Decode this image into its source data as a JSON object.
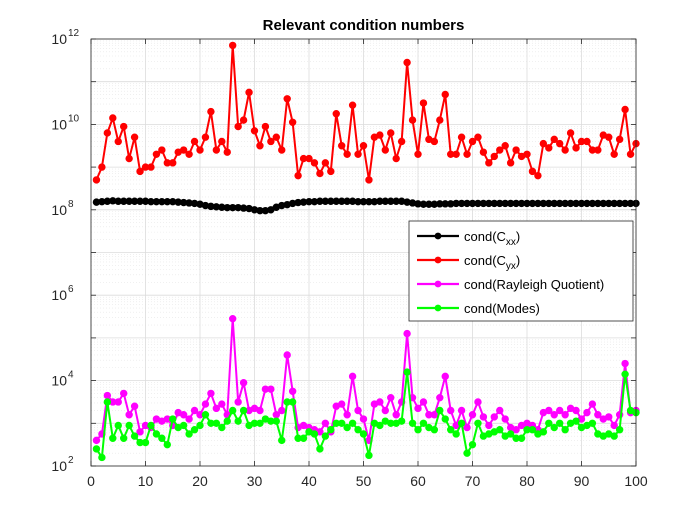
{
  "chart_data": {
    "type": "line",
    "title": "Relevant condition numbers",
    "xlabel": "",
    "ylabel": "",
    "xlim": [
      0,
      100
    ],
    "ylim_log10": [
      2,
      12
    ],
    "yscale": "log",
    "grid": true,
    "minor_grid": true,
    "legend_position": "right-center",
    "x_ticks": [
      "0",
      "10",
      "20",
      "30",
      "40",
      "50",
      "60",
      "70",
      "80",
      "90",
      "100"
    ],
    "y_ticks": [
      {
        "base": "10",
        "exp": "2"
      },
      {
        "base": "10",
        "exp": "4"
      },
      {
        "base": "10",
        "exp": "6"
      },
      {
        "base": "10",
        "exp": "8"
      },
      {
        "base": "10",
        "exp": "10"
      },
      {
        "base": "10",
        "exp": "12"
      }
    ],
    "x": [
      1,
      2,
      3,
      4,
      5,
      6,
      7,
      8,
      9,
      10,
      11,
      12,
      13,
      14,
      15,
      16,
      17,
      18,
      19,
      20,
      21,
      22,
      23,
      24,
      25,
      26,
      27,
      28,
      29,
      30,
      31,
      32,
      33,
      34,
      35,
      36,
      37,
      38,
      39,
      40,
      41,
      42,
      43,
      44,
      45,
      46,
      47,
      48,
      49,
      50,
      51,
      52,
      53,
      54,
      55,
      56,
      57,
      58,
      59,
      60,
      61,
      62,
      63,
      64,
      65,
      66,
      67,
      68,
      69,
      70,
      71,
      72,
      73,
      74,
      75,
      76,
      77,
      78,
      79,
      80,
      81,
      82,
      83,
      84,
      85,
      86,
      87,
      88,
      89,
      90,
      91,
      92,
      93,
      94,
      95,
      96,
      97,
      98,
      99,
      100
    ],
    "series": [
      {
        "name": "cond(C_xx)",
        "legend": {
          "main": "cond(C",
          "sub": "xx",
          "end": ")"
        },
        "color": "#000000",
        "log10_values": [
          8.18,
          8.19,
          8.2,
          8.21,
          8.2,
          8.2,
          8.2,
          8.2,
          8.2,
          8.2,
          8.19,
          8.19,
          8.19,
          8.19,
          8.19,
          8.18,
          8.17,
          8.16,
          8.15,
          8.13,
          8.1,
          8.08,
          8.07,
          8.06,
          8.05,
          8.05,
          8.05,
          8.04,
          8.03,
          8.0,
          7.98,
          7.98,
          8.0,
          8.06,
          8.1,
          8.12,
          8.15,
          8.17,
          8.18,
          8.19,
          8.19,
          8.2,
          8.2,
          8.2,
          8.2,
          8.2,
          8.2,
          8.2,
          8.19,
          8.19,
          8.19,
          8.19,
          8.2,
          8.2,
          8.2,
          8.2,
          8.2,
          8.18,
          8.16,
          8.14,
          8.13,
          8.13,
          8.13,
          8.14,
          8.14,
          8.14,
          8.15,
          8.15,
          8.15,
          8.15,
          8.15,
          8.15,
          8.15,
          8.15,
          8.15,
          8.15,
          8.15,
          8.15,
          8.15,
          8.15,
          8.15,
          8.15,
          8.15,
          8.15,
          8.15,
          8.15,
          8.15,
          8.15,
          8.15,
          8.15,
          8.15,
          8.15,
          8.15,
          8.15,
          8.15,
          8.15,
          8.15,
          8.15,
          8.15,
          8.15
        ]
      },
      {
        "name": "cond(C_yx)",
        "legend": {
          "main": "cond(C",
          "sub": "yx",
          "end": ")"
        },
        "color": "#ff0000",
        "log10_values": [
          8.7,
          9.0,
          9.8,
          10.15,
          9.6,
          9.95,
          9.2,
          9.7,
          8.9,
          9.0,
          9.0,
          9.3,
          9.4,
          9.1,
          9.1,
          9.35,
          9.4,
          9.3,
          9.6,
          9.4,
          9.7,
          10.3,
          9.4,
          9.6,
          9.35,
          11.85,
          9.95,
          10.1,
          10.75,
          9.85,
          9.5,
          9.95,
          9.6,
          9.7,
          9.4,
          10.6,
          10.05,
          8.8,
          9.2,
          9.2,
          9.1,
          8.85,
          9.1,
          8.9,
          10.25,
          9.5,
          9.3,
          10.45,
          9.3,
          9.5,
          8.7,
          9.7,
          9.75,
          9.4,
          9.8,
          9.2,
          9.6,
          11.45,
          10.1,
          9.3,
          10.5,
          9.65,
          9.6,
          10.1,
          10.7,
          9.3,
          9.3,
          9.7,
          9.3,
          9.6,
          9.7,
          9.35,
          9.1,
          9.25,
          9.4,
          9.5,
          9.1,
          9.4,
          9.25,
          9.3,
          8.9,
          8.8,
          9.55,
          9.45,
          9.65,
          9.55,
          9.4,
          9.8,
          9.45,
          9.6,
          9.6,
          9.4,
          9.4,
          9.75,
          9.7,
          9.3,
          9.65,
          10.35,
          9.3,
          9.55
        ]
      },
      {
        "name": "cond(Rayleigh Quotient)",
        "legend": {
          "main": "cond(Rayleigh Quotient)",
          "sub": "",
          "end": ""
        },
        "color": "#ff00ff",
        "log10_values": [
          2.6,
          2.75,
          3.65,
          3.5,
          3.5,
          3.7,
          3.2,
          3.4,
          2.8,
          2.95,
          2.9,
          3.1,
          3.05,
          3.1,
          2.95,
          3.25,
          3.2,
          3.1,
          3.3,
          3.2,
          3.45,
          3.7,
          3.35,
          3.45,
          3.2,
          5.45,
          3.5,
          3.95,
          3.3,
          3.35,
          3.3,
          3.8,
          3.8,
          3.2,
          3.3,
          4.6,
          3.75,
          2.9,
          2.95,
          2.9,
          2.85,
          2.8,
          3.0,
          2.8,
          3.4,
          3.45,
          3.2,
          4.1,
          3.3,
          3.1,
          2.6,
          3.45,
          3.5,
          3.3,
          3.6,
          3.2,
          3.5,
          5.1,
          3.6,
          3.35,
          3.5,
          3.2,
          3.2,
          3.6,
          4.1,
          3.3,
          2.95,
          3.3,
          2.9,
          3.2,
          3.5,
          3.15,
          2.95,
          3.15,
          3.3,
          3.1,
          2.9,
          2.85,
          2.95,
          3.0,
          2.95,
          2.85,
          3.25,
          3.3,
          3.2,
          3.3,
          3.2,
          3.35,
          3.3,
          3.1,
          3.25,
          3.45,
          3.2,
          3.1,
          3.15,
          2.95,
          3.2,
          4.4,
          3.25,
          3.3
        ]
      },
      {
        "name": "cond(Modes)",
        "legend": {
          "main": "cond(Modes)",
          "sub": "",
          "end": ""
        },
        "color": "#00ff00",
        "log10_values": [
          2.4,
          2.2,
          3.5,
          2.65,
          2.95,
          2.65,
          2.95,
          2.7,
          2.55,
          2.55,
          2.95,
          2.75,
          2.65,
          2.5,
          3.1,
          2.9,
          2.95,
          2.75,
          2.85,
          2.95,
          3.2,
          3.0,
          3.0,
          2.9,
          3.05,
          3.3,
          3.05,
          3.3,
          2.95,
          3.0,
          3.0,
          3.1,
          3.05,
          3.05,
          2.6,
          3.5,
          3.5,
          2.65,
          2.65,
          2.8,
          2.75,
          2.4,
          2.7,
          2.85,
          3.0,
          3.0,
          2.9,
          3.0,
          2.85,
          2.75,
          2.25,
          3.0,
          2.95,
          3.05,
          3.0,
          3.0,
          3.05,
          4.2,
          3.0,
          2.85,
          3.0,
          2.9,
          2.85,
          3.3,
          3.1,
          2.85,
          2.75,
          3.0,
          2.3,
          2.5,
          3.0,
          2.7,
          2.75,
          2.8,
          2.85,
          2.7,
          2.75,
          2.65,
          2.65,
          2.85,
          2.85,
          2.75,
          2.8,
          3.0,
          2.9,
          3.0,
          2.85,
          3.0,
          3.05,
          2.9,
          2.95,
          3.0,
          2.75,
          2.7,
          2.75,
          2.7,
          2.85,
          4.15,
          3.3,
          3.25
        ]
      }
    ]
  }
}
